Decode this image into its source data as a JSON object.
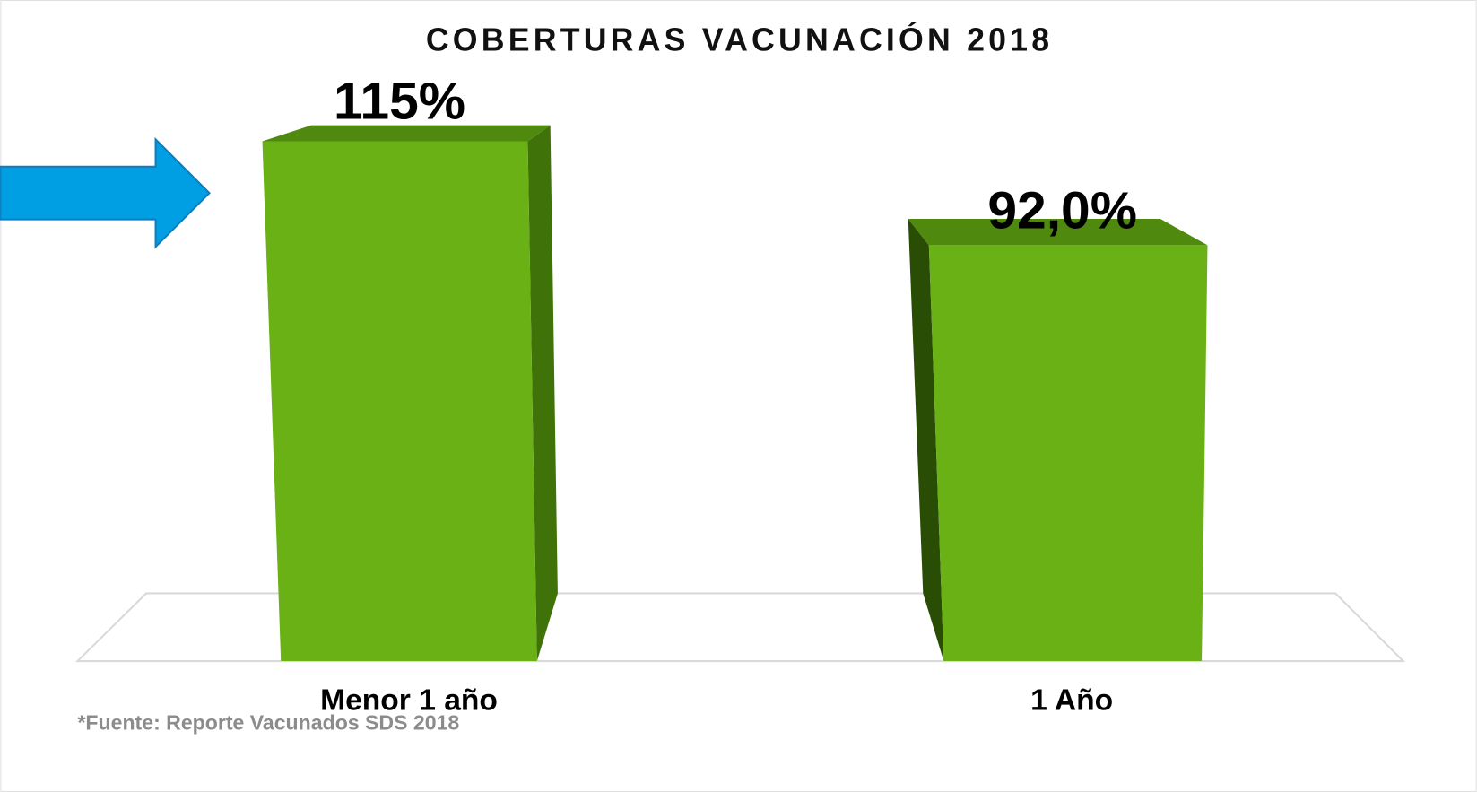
{
  "chart_data": {
    "type": "bar3d",
    "title": "COBERTURAS VACUNACIÓN 2018",
    "categories": [
      "Menor 1 año",
      "1 Año"
    ],
    "values": [
      115,
      92.0
    ],
    "value_labels": [
      "115%",
      "92,0%"
    ],
    "color": "#6ab116",
    "annotation": "*Fuente: Reporte Vacunados SDS 2018"
  }
}
